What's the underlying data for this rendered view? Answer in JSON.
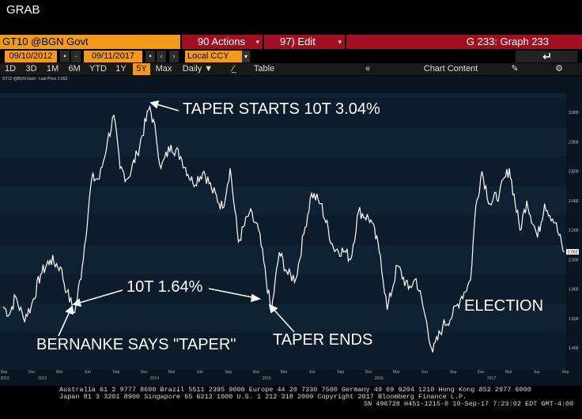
{
  "header": {
    "grab": "GRAB"
  },
  "security": {
    "label": "GT10 @BGN Govt"
  },
  "actions": {
    "label": "90 Actions",
    "caret": "▾"
  },
  "edit": {
    "label": "97) Edit",
    "caret": "▾"
  },
  "graph_title": "G 233: Graph 233",
  "dates": {
    "start": "09/10/2012",
    "end": "09/11/2017",
    "sep": "-"
  },
  "currency": {
    "label": "Local CCY"
  },
  "toolbar": {
    "periods": [
      "1D",
      "3D",
      "1M",
      "6M",
      "YTD",
      "1Y",
      "5Y",
      "Max"
    ],
    "selected_period": "5Y",
    "frequency": "Daily",
    "table_label": "Table",
    "chart_content_label": "Chart Content"
  },
  "legend": "GT10 @BGN Govt - Last Price 2.052",
  "annotations": {
    "taper_starts": "TAPER STARTS 10T 3.04%",
    "ten_t_low": "10T 1.64%",
    "bernanke": "BERNANKE SAYS \"TAPER\"",
    "taper_ends": "TAPER ENDS",
    "election": "ELECTION"
  },
  "footer": {
    "line1": "Australia 61 2 9777 8600 Brazil 5511 2395 9000 Europe 44 20 7330 7500 Germany 49 69 9204 1210 Hong Kong 852 2977 6000",
    "line2": "Japan 81 3 3201 8900        Singapore 65 6212 1000        U.S. 1 212 318 2000          Copyright 2017 Bloomberg Finance L.P.",
    "line3": "SN 496728 H451-1215-0 10-Sep-17  7:23:02 EDT  GMT-4:00"
  },
  "chart_data": {
    "type": "line",
    "series": [
      {
        "name": "GT10 @BGN Govt - Last Price",
        "points": [
          [
            "2012-09-10",
            1.68
          ],
          [
            "2012-10-01",
            1.63
          ],
          [
            "2012-10-20",
            1.75
          ],
          [
            "2012-11-15",
            1.6
          ],
          [
            "2012-12-10",
            1.68
          ],
          [
            "2013-01-10",
            1.9
          ],
          [
            "2013-02-10",
            2.0
          ],
          [
            "2013-03-15",
            1.95
          ],
          [
            "2013-04-05",
            1.78
          ],
          [
            "2013-05-01",
            1.64
          ],
          [
            "2013-05-25",
            1.95
          ],
          [
            "2013-06-25",
            2.55
          ],
          [
            "2013-07-20",
            2.55
          ],
          [
            "2013-08-15",
            2.8
          ],
          [
            "2013-09-05",
            2.98
          ],
          [
            "2013-09-25",
            2.62
          ],
          [
            "2013-10-20",
            2.55
          ],
          [
            "2013-11-20",
            2.72
          ],
          [
            "2013-12-31",
            3.04
          ],
          [
            "2014-01-20",
            2.85
          ],
          [
            "2014-02-05",
            2.62
          ],
          [
            "2014-03-10",
            2.78
          ],
          [
            "2014-04-10",
            2.7
          ],
          [
            "2014-05-20",
            2.52
          ],
          [
            "2014-06-25",
            2.6
          ],
          [
            "2014-07-20",
            2.48
          ],
          [
            "2014-08-25",
            2.35
          ],
          [
            "2014-09-18",
            2.62
          ],
          [
            "2014-10-15",
            2.12
          ],
          [
            "2014-11-20",
            2.32
          ],
          [
            "2014-12-20",
            2.2
          ],
          [
            "2015-01-30",
            1.64
          ],
          [
            "2015-02-25",
            2.05
          ],
          [
            "2015-03-25",
            1.9
          ],
          [
            "2015-04-20",
            1.87
          ],
          [
            "2015-05-20",
            2.22
          ],
          [
            "2015-06-10",
            2.45
          ],
          [
            "2015-07-10",
            2.38
          ],
          [
            "2015-08-20",
            2.08
          ],
          [
            "2015-09-30",
            2.05
          ],
          [
            "2015-10-15",
            2.0
          ],
          [
            "2015-11-10",
            2.33
          ],
          [
            "2015-12-20",
            2.27
          ],
          [
            "2016-01-20",
            2.03
          ],
          [
            "2016-02-11",
            1.66
          ],
          [
            "2016-03-15",
            1.96
          ],
          [
            "2016-04-20",
            1.8
          ],
          [
            "2016-05-15",
            1.87
          ],
          [
            "2016-06-10",
            1.65
          ],
          [
            "2016-07-08",
            1.37
          ],
          [
            "2016-08-10",
            1.55
          ],
          [
            "2016-09-10",
            1.62
          ],
          [
            "2016-10-10",
            1.75
          ],
          [
            "2016-11-08",
            1.86
          ],
          [
            "2016-11-25",
            2.36
          ],
          [
            "2016-12-15",
            2.6
          ],
          [
            "2017-01-10",
            2.38
          ],
          [
            "2017-02-10",
            2.45
          ],
          [
            "2017-03-14",
            2.62
          ],
          [
            "2017-04-18",
            2.2
          ],
          [
            "2017-05-10",
            2.4
          ],
          [
            "2017-06-14",
            2.15
          ],
          [
            "2017-07-07",
            2.38
          ],
          [
            "2017-08-10",
            2.25
          ],
          [
            "2017-09-08",
            2.05
          ]
        ]
      }
    ],
    "y_ticks": [
      "3.000",
      "2.800",
      "2.600",
      "2.400",
      "2.200",
      "2.000",
      "1.800",
      "1.600",
      "1.400"
    ],
    "ylim": [
      1.25,
      3.13
    ],
    "x_month_ticks": [
      "Sep",
      "Dec",
      "Mar",
      "Jun",
      "Sep",
      "Dec",
      "Mar",
      "Jun",
      "Sep",
      "Dec",
      "Mar",
      "Jun",
      "Sep",
      "Dec",
      "Mar",
      "Jun",
      "Sep",
      "Dec",
      "Mar",
      "Jun",
      "Sep"
    ],
    "x_year_ticks": [
      "2012",
      "2013",
      "2014",
      "2015",
      "2016",
      "2017"
    ],
    "last_value_label": "2.052",
    "line_color": "#ffffff",
    "grid": true
  }
}
